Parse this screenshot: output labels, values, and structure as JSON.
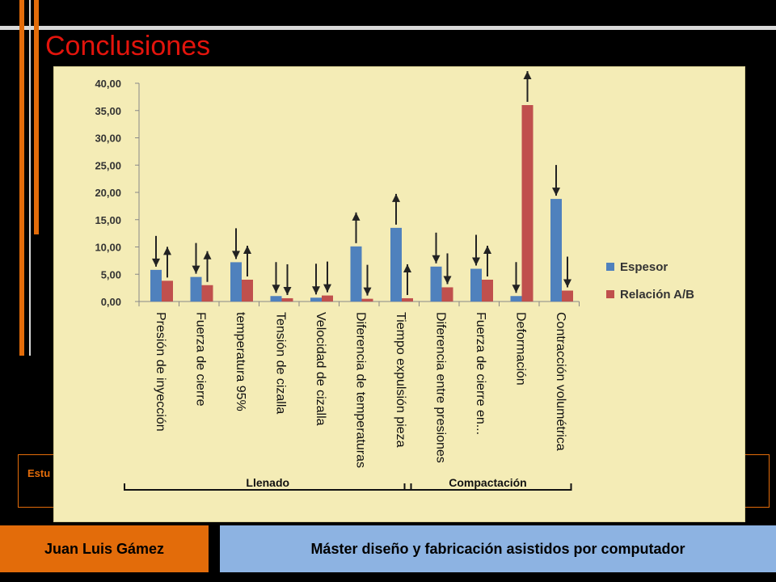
{
  "slide": {
    "title": "Conclusiones",
    "behind_text": "Estu herr"
  },
  "footer": {
    "author": "Juan Luis Gámez",
    "program": "Máster diseño y fabricación asistidos por computador"
  },
  "colors": {
    "accent_orange": "#e36c0a",
    "title_red": "#e3140c",
    "footer_blue": "#8db3e2",
    "chart_bg": "#f4ecb6",
    "series_espesor": "#4f81bd",
    "series_relacion": "#c0504d"
  },
  "chart_data": {
    "type": "bar",
    "categories": [
      "Presión de inyección",
      "Fuerza de cierre",
      "temperatura 95%",
      "Tensión de cizalla",
      "Velocidad de cizalla",
      "Diferencia de temperaturas",
      "Tiempo expulsión pieza",
      "Diferencia entre presiones",
      "Fuerza de cierre en...",
      "Deformación",
      "Contracción volumétrica"
    ],
    "series": [
      {
        "name": "Espesor",
        "color": "#4f81bd",
        "values": [
          5.8,
          4.5,
          7.2,
          1.0,
          0.7,
          10.1,
          13.5,
          6.4,
          6.0,
          1.0,
          18.8
        ]
      },
      {
        "name": "Relación A/B",
        "color": "#c0504d",
        "values": [
          3.8,
          3.0,
          4.0,
          0.6,
          1.1,
          0.5,
          0.6,
          2.6,
          4.0,
          36.0,
          2.0
        ]
      }
    ],
    "arrows": [
      {
        "series": 0,
        "dir": [
          "down",
          "down",
          "down",
          "down",
          "down",
          "up",
          "up",
          "down",
          "down",
          "down",
          "down"
        ]
      },
      {
        "series": 1,
        "dir": [
          "up",
          "up",
          "up",
          "down",
          "down",
          "down",
          "up",
          "down",
          "up",
          "up",
          "down"
        ]
      }
    ],
    "ylim": [
      0,
      40
    ],
    "yticks": [
      "0,00",
      "5,00",
      "10,00",
      "15,00",
      "20,00",
      "25,00",
      "30,00",
      "35,00",
      "40,00"
    ],
    "legend_position": "right",
    "groups": [
      {
        "label": "Llenado",
        "from": 0,
        "to": 6
      },
      {
        "label": "Compactación",
        "from": 7,
        "to": 10
      }
    ],
    "grid": false
  }
}
